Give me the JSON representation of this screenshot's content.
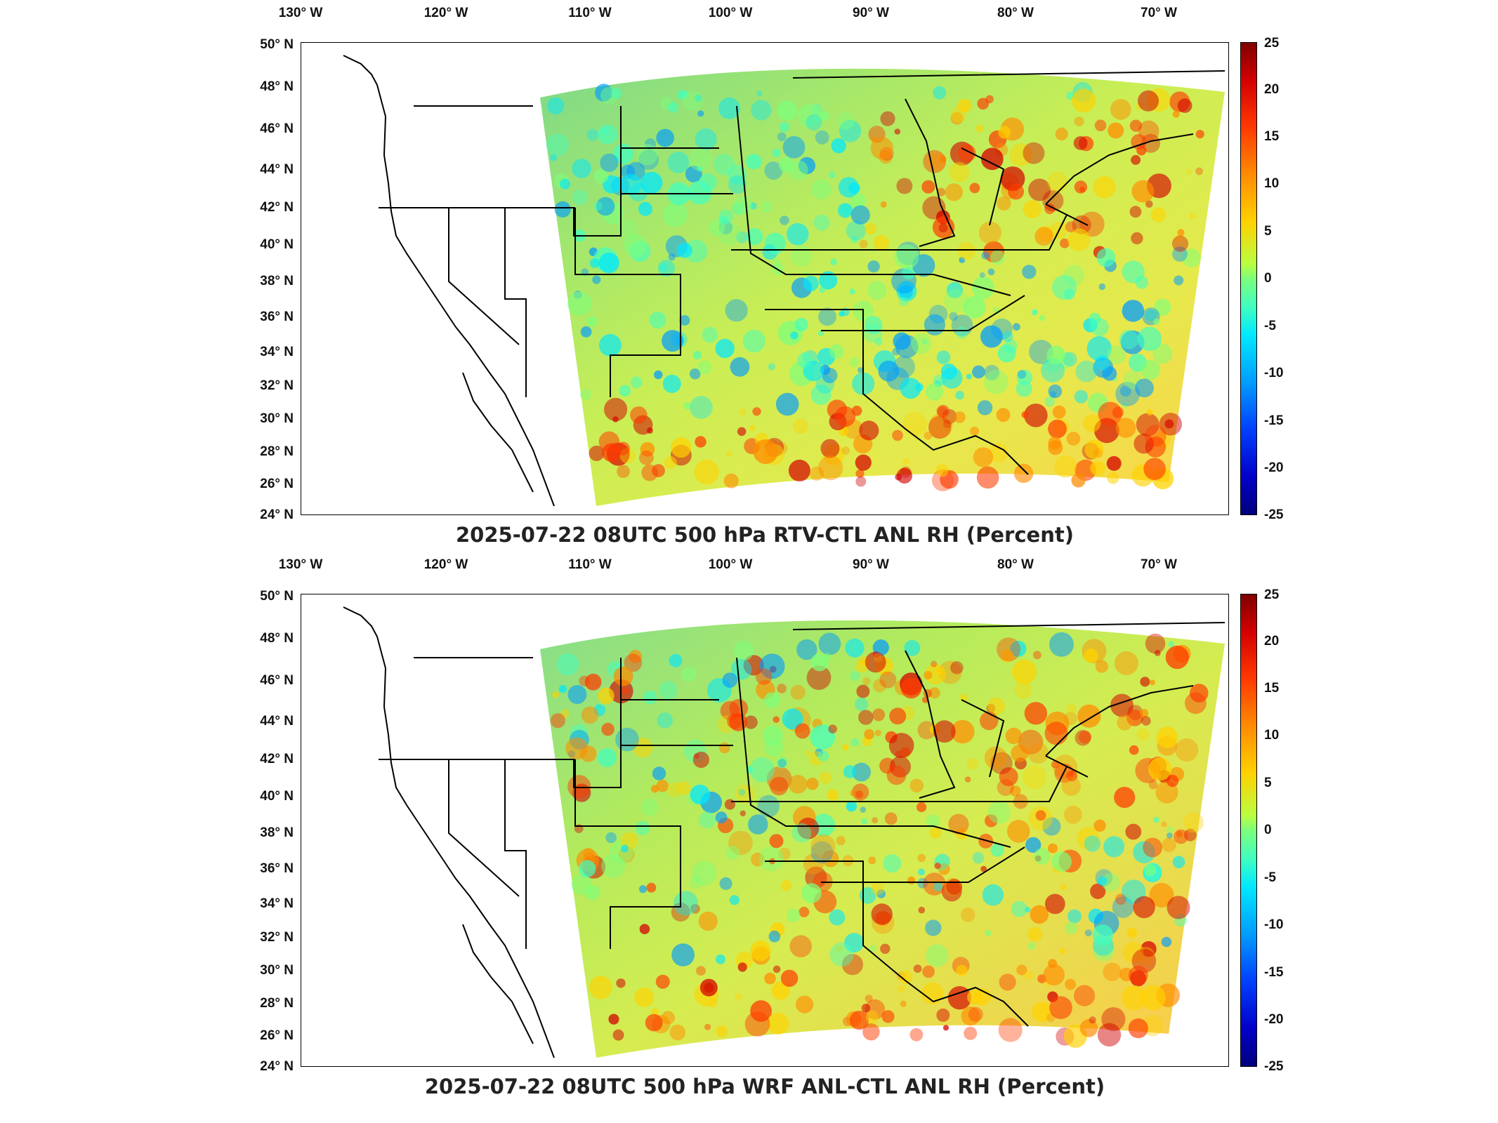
{
  "lon_ticks": [
    "130° W",
    "120° W",
    "110° W",
    "100° W",
    "90° W",
    "80° W",
    "70° W"
  ],
  "lat_ticks": [
    "50° N",
    "48° N",
    "46° N",
    "44° N",
    "42° N",
    "40° N",
    "38° N",
    "36° N",
    "34° N",
    "32° N",
    "30° N",
    "28° N",
    "26° N",
    "24° N"
  ],
  "colorbar_ticks": [
    "25",
    "20",
    "15",
    "10",
    "5",
    "0",
    "-5",
    "-10",
    "-15",
    "-20",
    "-25"
  ],
  "colorscale": [
    "#00007e",
    "#0000c8",
    "#0040ff",
    "#009cff",
    "#00e8ff",
    "#40ffc0",
    "#7cff7c",
    "#b8ff40",
    "#ffd200",
    "#ff8c00",
    "#ff3a00",
    "#d40000",
    "#800000"
  ],
  "panels": [
    {
      "title": "2025-07-22 08UTC 500 hPa RTV-CTL ANL RH (Percent)",
      "colorbar_range": [
        -25,
        25
      ]
    },
    {
      "title": "2025-07-22 08UTC 500 hPa WRF ANL-CTL ANL RH (Percent)",
      "colorbar_range": [
        -25,
        25
      ]
    }
  ]
}
